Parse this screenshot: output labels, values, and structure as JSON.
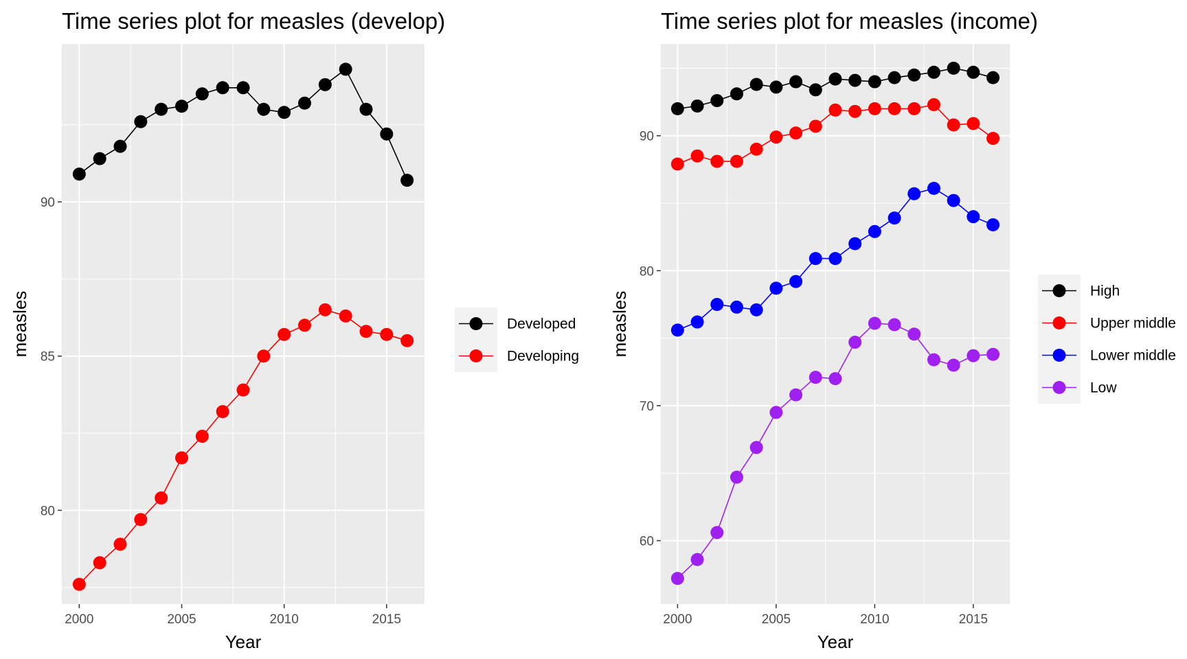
{
  "chart_data": [
    {
      "type": "line",
      "title": "Time series plot for measles (develop)",
      "xlabel": "Year",
      "ylabel": "measles",
      "x": [
        2000,
        2001,
        2002,
        2003,
        2004,
        2005,
        2006,
        2007,
        2008,
        2009,
        2010,
        2011,
        2012,
        2013,
        2014,
        2015,
        2016
      ],
      "xlim": [
        1999.15,
        2016.85
      ],
      "ylim": [
        76.96,
        95.12
      ],
      "xticks": [
        2000,
        2005,
        2010,
        2015
      ],
      "yticks": [
        80,
        85,
        90
      ],
      "grid": true,
      "legend_position": "right",
      "series": [
        {
          "name": "Developed",
          "color": "#000000",
          "values": [
            90.9,
            91.4,
            91.8,
            92.6,
            93.0,
            93.1,
            93.5,
            93.7,
            93.7,
            93.0,
            92.9,
            93.2,
            93.8,
            94.3,
            93.0,
            92.2,
            90.7
          ]
        },
        {
          "name": "Developing",
          "color": "#ff0000",
          "values": [
            77.6,
            78.3,
            78.9,
            79.7,
            80.4,
            81.7,
            82.4,
            83.2,
            83.9,
            85.0,
            85.7,
            86.0,
            86.5,
            86.3,
            85.8,
            85.7,
            85.5
          ]
        }
      ]
    },
    {
      "type": "line",
      "title": "Time series plot for measles (income)",
      "xlabel": "Year",
      "ylabel": "measles",
      "x": [
        2000,
        2001,
        2002,
        2003,
        2004,
        2005,
        2006,
        2007,
        2008,
        2009,
        2010,
        2011,
        2012,
        2013,
        2014,
        2015,
        2016
      ],
      "xlim": [
        1999.15,
        2016.85
      ],
      "ylim": [
        55.3,
        96.8
      ],
      "xticks": [
        2000,
        2005,
        2010,
        2015
      ],
      "yticks": [
        60,
        70,
        80,
        90
      ],
      "grid": true,
      "legend_position": "right",
      "series": [
        {
          "name": "High",
          "color": "#000000",
          "values": [
            92.0,
            92.2,
            92.6,
            93.1,
            93.8,
            93.6,
            94.0,
            93.4,
            94.2,
            94.1,
            94.0,
            94.3,
            94.5,
            94.7,
            95.0,
            94.7,
            94.3
          ]
        },
        {
          "name": "Upper middle",
          "color": "#ff0000",
          "values": [
            87.9,
            88.5,
            88.1,
            88.1,
            89.0,
            89.9,
            90.2,
            90.7,
            91.9,
            91.8,
            92.0,
            92.0,
            92.0,
            92.3,
            90.8,
            90.9,
            89.8
          ]
        },
        {
          "name": "Lower middle",
          "color": "#0000ff",
          "values": [
            75.6,
            76.2,
            77.5,
            77.3,
            77.1,
            78.7,
            79.2,
            80.9,
            80.9,
            82.0,
            82.9,
            83.9,
            85.7,
            86.1,
            85.2,
            84.0,
            83.4
          ]
        },
        {
          "name": "Low",
          "color": "#a020f0",
          "values": [
            57.2,
            58.6,
            60.6,
            64.7,
            66.9,
            69.5,
            70.8,
            72.1,
            72.0,
            74.7,
            76.1,
            76.0,
            75.3,
            73.4,
            73.0,
            73.7,
            73.8
          ]
        }
      ]
    }
  ]
}
